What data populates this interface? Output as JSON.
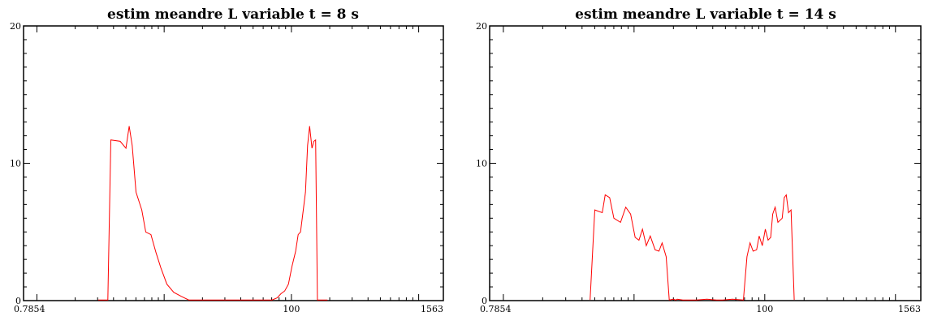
{
  "chart_data": [
    {
      "type": "line",
      "title": "estim meandre L variable t = 8 s",
      "xlabel": "",
      "ylabel": "",
      "x_scale": "log",
      "xlim": [
        0.7854,
        1563
      ],
      "ylim": [
        0,
        20
      ],
      "x_ticks": [
        0.7854,
        100,
        1563
      ],
      "x_tick_labels": [
        "0.7854",
        "100",
        "1563"
      ],
      "y_ticks": [
        0,
        10,
        20
      ],
      "y_tick_labels": [
        "0",
        "10",
        "20"
      ],
      "grid": false,
      "line_color": "#ff0000",
      "series": [
        {
          "x": [
            3.03,
            3.61,
            3.81,
            4.51,
            5.01,
            5.31,
            5.61,
            6.01,
            6.67,
            7.17,
            7.88,
            8.63,
            9.41,
            10.5,
            11.9,
            13.7,
            15.6,
            17.4,
            63.1,
            70.5,
            77.2,
            82.8,
            88.6,
            94.8,
            101,
            108,
            113,
            118,
            124,
            129,
            134,
            139,
            145,
            150,
            155,
            160,
            166,
            170,
            175,
            181,
            192
          ],
          "y": [
            0.05,
            0.05,
            11.7,
            11.6,
            11.1,
            12.7,
            11.3,
            7.9,
            6.6,
            5.0,
            4.8,
            3.5,
            2.4,
            1.2,
            0.6,
            0.3,
            0.05,
            0.05,
            0.05,
            0.05,
            0.2,
            0.5,
            0.7,
            1.2,
            2.5,
            3.6,
            4.8,
            5.0,
            6.6,
            7.9,
            11.3,
            12.7,
            11.1,
            11.6,
            11.7,
            0.05,
            0.05,
            0.05,
            0.05,
            0.05,
            0.05
          ]
        }
      ]
    },
    {
      "type": "line",
      "title": "estim meandre L variable t = 14 s",
      "xlabel": "",
      "ylabel": "",
      "x_scale": "log",
      "xlim": [
        0.7854,
        1563
      ],
      "ylim": [
        0,
        20
      ],
      "x_ticks": [
        0.7854,
        100,
        1563
      ],
      "x_tick_labels": [
        "0.7854",
        "100",
        "1563"
      ],
      "y_ticks": [
        0,
        10,
        20
      ],
      "y_tick_labels": [
        "0",
        "10",
        "20"
      ],
      "grid": false,
      "line_color": "#ff0000",
      "series": [
        {
          "x": [
            4.61,
            5.01,
            5.71,
            6.01,
            6.51,
            7.01,
            7.88,
            8.63,
            9.41,
            10.2,
            10.9,
            11.6,
            12.4,
            13.3,
            14.5,
            15.5,
            16.4,
            17.6,
            18.6,
            19.9,
            20.9,
            21.4,
            23.6,
            29.8,
            36.1,
            42.7,
            47.6,
            56.5,
            68.6,
            73.1,
            77.2,
            81.5,
            86.6,
            90.6,
            95.8,
            101,
            106,
            111,
            115,
            120,
            126,
            136,
            141,
            146,
            152,
            159,
            168
          ],
          "y": [
            0.05,
            6.6,
            6.4,
            7.7,
            7.5,
            6.0,
            5.7,
            6.8,
            6.3,
            4.6,
            4.4,
            5.2,
            4.0,
            4.7,
            3.7,
            3.6,
            4.2,
            3.2,
            0.05,
            0.1,
            0.05,
            0.1,
            0.05,
            0.05,
            0.1,
            0.05,
            0.05,
            0.1,
            0.05,
            3.2,
            4.2,
            3.6,
            3.7,
            4.7,
            4.0,
            5.2,
            4.4,
            4.6,
            6.3,
            6.8,
            5.7,
            6.0,
            7.5,
            7.7,
            6.4,
            6.6,
            0.05
          ]
        }
      ]
    }
  ]
}
